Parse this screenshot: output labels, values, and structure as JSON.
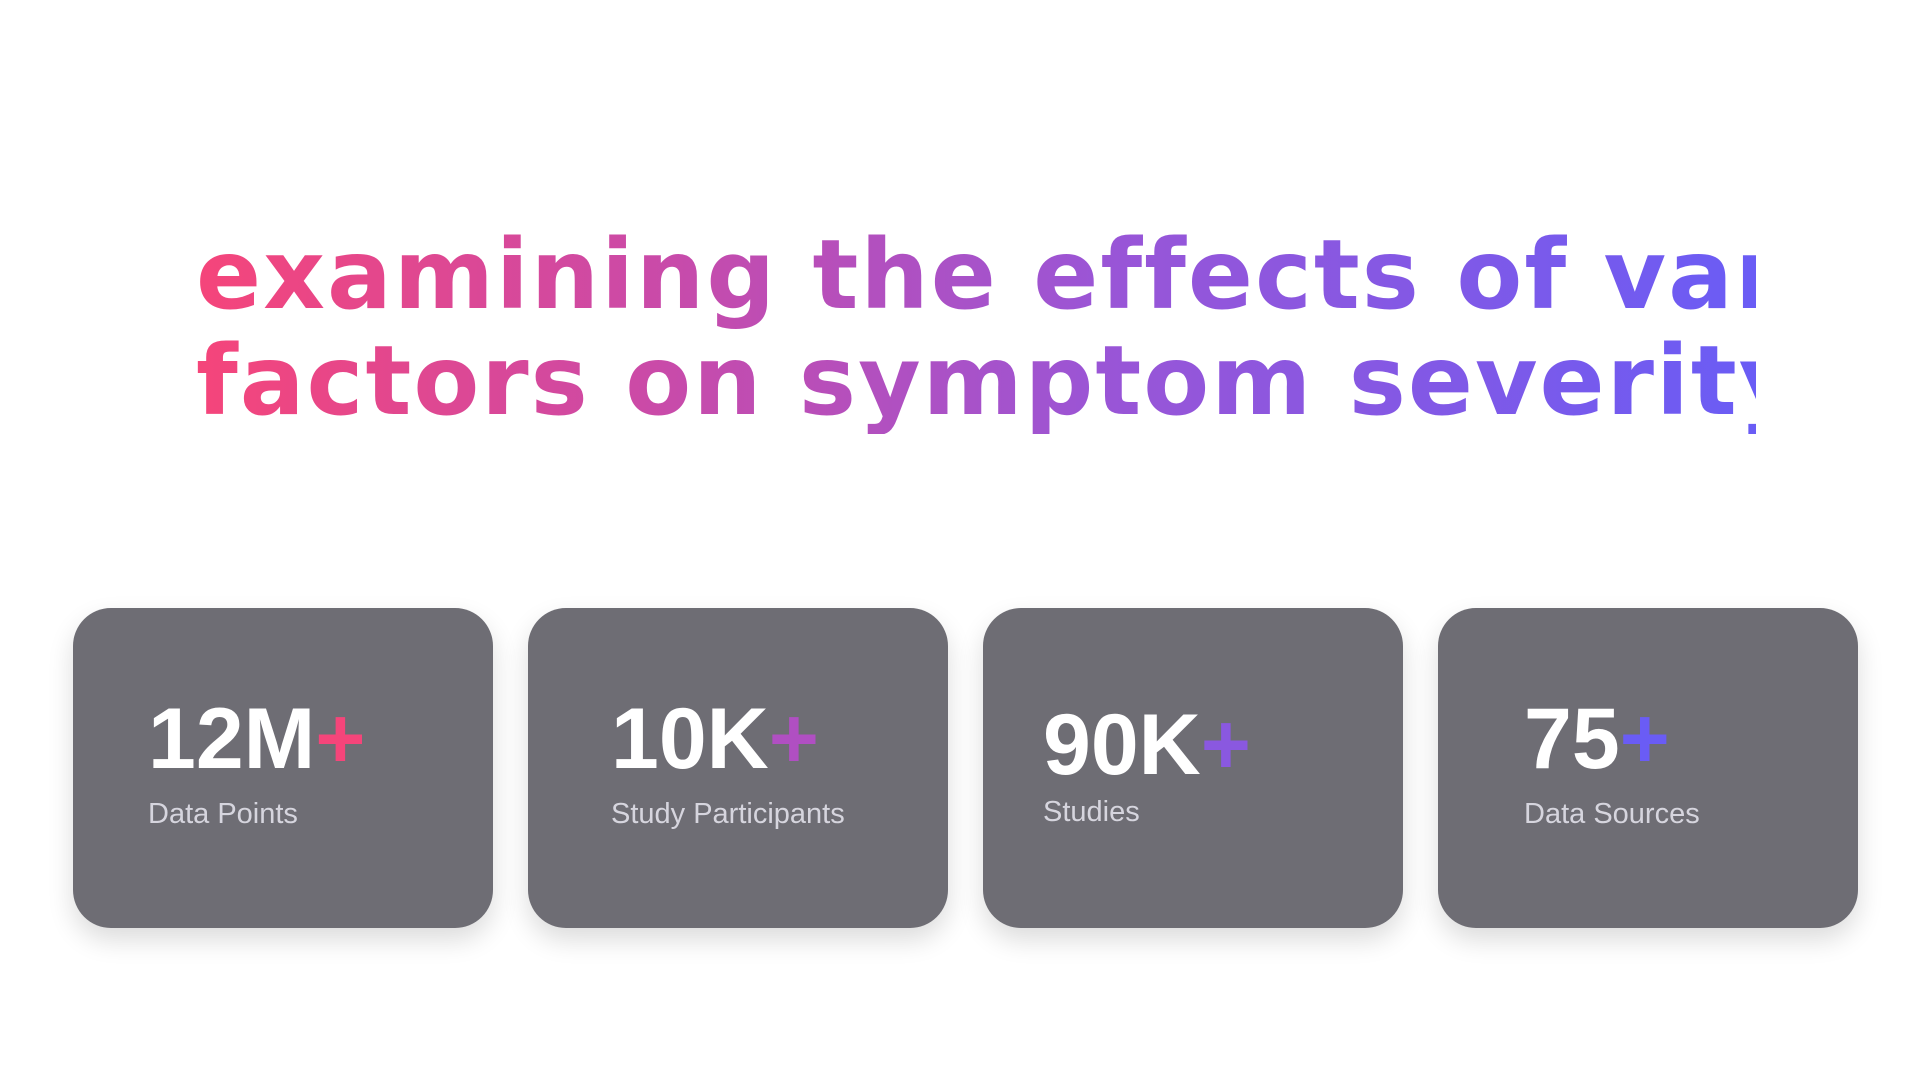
{
  "headline": {
    "line1": "examining the effects of various",
    "line2": "factors on symptom severity"
  },
  "colors": {
    "gradient_start": "#f5457a",
    "gradient_end": "#6a5cf5",
    "card_background": "#6e6d74",
    "stat_text": "#ffffff",
    "label_text": "#d6d5de"
  },
  "stats": [
    {
      "value": "12M",
      "suffix": "+",
      "label": "Data Points",
      "suffix_color": "#f5457a"
    },
    {
      "value": "10K",
      "suffix": "+",
      "label": "Study Participants",
      "suffix_color": "#b04fc2"
    },
    {
      "value": "90K",
      "suffix": "+",
      "label": "Studies",
      "suffix_color": "#8a58e0"
    },
    {
      "value": "75",
      "suffix": "+",
      "label": "Data Sources",
      "suffix_color": "#6a5cf5"
    }
  ]
}
